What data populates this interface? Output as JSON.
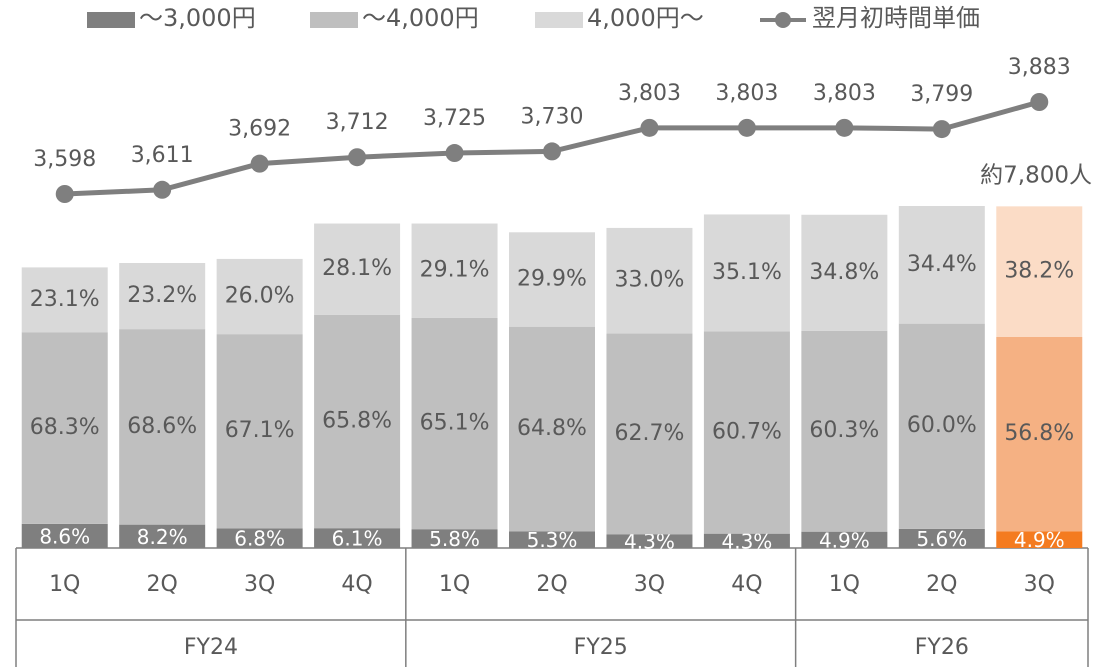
{
  "chart_data": {
    "type": "bar-line",
    "categories": [
      "1Q",
      "2Q",
      "3Q",
      "4Q",
      "1Q",
      "2Q",
      "3Q",
      "4Q",
      "1Q",
      "2Q",
      "3Q"
    ],
    "groups": [
      {
        "name": "FY24",
        "size": 4
      },
      {
        "name": "FY25",
        "size": 4
      },
      {
        "name": "FY26",
        "size": 3
      }
    ],
    "totals": [
      6400,
      6500,
      6600,
      7400,
      7400,
      7200,
      7300,
      7600,
      7600,
      7800,
      7800
    ],
    "series": [
      {
        "name": "～3,000円",
        "color": "#7f7f7f",
        "highlight_color": "#f47b20",
        "values": [
          8.6,
          8.2,
          6.8,
          6.1,
          5.8,
          5.3,
          4.3,
          4.3,
          4.9,
          5.6,
          4.9
        ],
        "value_labels": [
          "8.6%",
          "8.2%",
          "6.8%",
          "6.1%",
          "5.8%",
          "5.3%",
          "4.3%",
          "4.3%",
          "4.9%",
          "5.6%",
          "4.9%"
        ]
      },
      {
        "name": "～4,000円",
        "color": "#bfbfbf",
        "highlight_color": "#f5b183",
        "values": [
          68.3,
          68.6,
          67.1,
          65.8,
          65.1,
          64.8,
          62.7,
          60.7,
          60.3,
          60.0,
          56.8
        ],
        "value_labels": [
          "68.3%",
          "68.6%",
          "67.1%",
          "65.8%",
          "65.1%",
          "64.8%",
          "62.7%",
          "60.7%",
          "60.3%",
          "60.0%",
          "56.8%"
        ]
      },
      {
        "name": "4,000円～",
        "color": "#d9d9d9",
        "highlight_color": "#fbdcc6",
        "values": [
          23.1,
          23.2,
          26.0,
          28.1,
          29.1,
          29.9,
          33.0,
          35.1,
          34.8,
          34.4,
          38.2
        ],
        "value_labels": [
          "23.1%",
          "23.2%",
          "26.0%",
          "28.1%",
          "29.1%",
          "29.9%",
          "33.0%",
          "35.1%",
          "34.8%",
          "34.4%",
          "38.2%"
        ]
      },
      {
        "name": "翌月初時間単価",
        "type": "line",
        "color": "#7f7f7f",
        "values": [
          3598,
          3611,
          3692,
          3712,
          3725,
          3730,
          3803,
          3803,
          3803,
          3799,
          3883
        ],
        "value_labels": [
          "3,598",
          "3,611",
          "3,692",
          "3,712",
          "3,725",
          "3,730",
          "3,803",
          "3,803",
          "3,803",
          "3,799",
          "3,883"
        ]
      }
    ],
    "annotation": "約7,800人"
  }
}
